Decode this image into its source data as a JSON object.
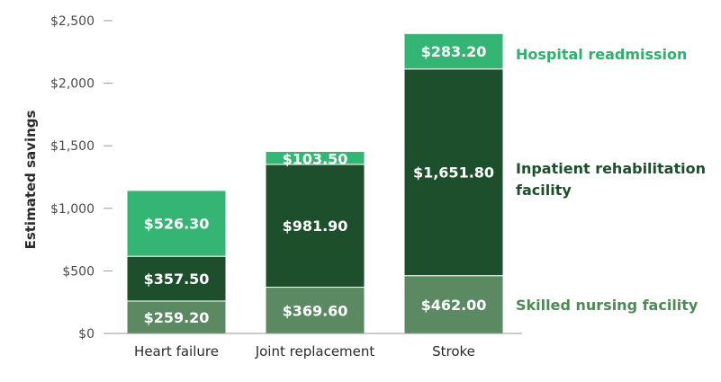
{
  "chart_data": {
    "type": "bar",
    "stacked": true,
    "categories": [
      "Heart failure",
      "Joint replacement",
      "Stroke"
    ],
    "ylabel": "Estimated savings",
    "ylim": [
      0,
      2500
    ],
    "yticks": [
      0,
      500,
      1000,
      1500,
      2000,
      2500
    ],
    "ytick_labels": [
      "$0",
      "$500",
      "$1,000",
      "$1,500",
      "$2,000",
      "$2,500"
    ],
    "grid": false,
    "legend_position": "right, beside stroke bar",
    "series": [
      {
        "name": "Skilled nursing facility",
        "values": [
          259.2,
          369.6,
          462.0
        ],
        "labels": [
          "$259.20",
          "$369.60",
          "$462.00"
        ],
        "color": "#5b8a62",
        "legend_color": "#4e8a57"
      },
      {
        "name": "Inpatient rehabilitation facility",
        "name_lines": [
          "Inpatient rehabilitation",
          "facility"
        ],
        "values": [
          357.5,
          981.9,
          1651.8
        ],
        "labels": [
          "$357.50",
          "$981.90",
          "$1,651.80"
        ],
        "color": "#1d4f2c",
        "legend_color": "#1d4f2c"
      },
      {
        "name": "Hospital readmission",
        "values": [
          526.3,
          103.5,
          283.2
        ],
        "labels": [
          "$526.30",
          "$103.50",
          "$283.20"
        ],
        "color": "#34b574",
        "legend_color": "#2fb06f"
      }
    ]
  }
}
